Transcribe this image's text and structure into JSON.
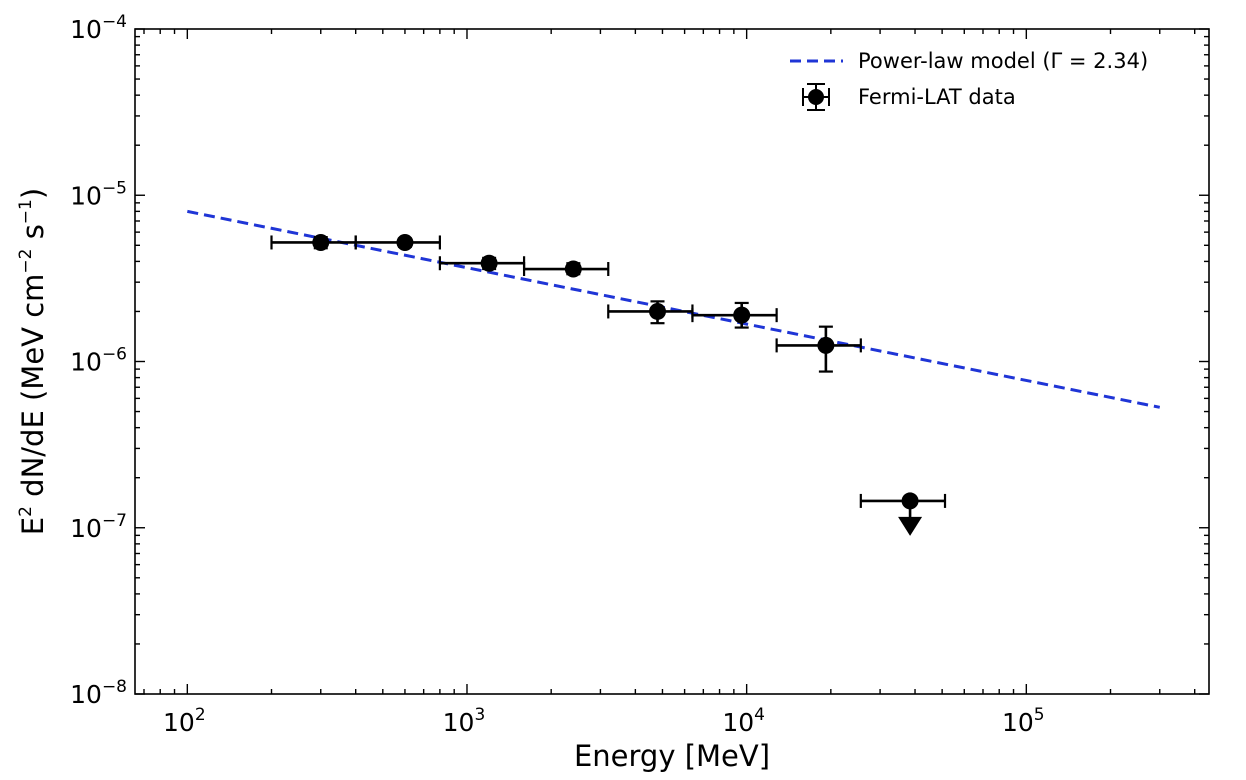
{
  "chart_data": {
    "type": "scatter",
    "xlabel": "Energy [MeV]",
    "ylabel": "E² dN/dE (MeV cm⁻² s⁻¹)",
    "ylabel_parts": {
      "pre": "E",
      "sup_E": "2",
      "mid": " dN/dE (MeV cm",
      "sup_cm": "−2",
      "mid2": " s",
      "sup_s": "−1",
      "post": ")"
    },
    "xscale": "log",
    "yscale": "log",
    "xlim": [
      65,
      450000
    ],
    "ylim": [
      1e-08,
      0.0001
    ],
    "x_ticks": [
      {
        "value": 100,
        "base": "10",
        "exp": "2"
      },
      {
        "value": 1000,
        "base": "10",
        "exp": "3"
      },
      {
        "value": 10000,
        "base": "10",
        "exp": "4"
      },
      {
        "value": 100000,
        "base": "10",
        "exp": "5"
      }
    ],
    "y_ticks": [
      {
        "value": 1e-08,
        "base": "10",
        "exp": "−8"
      },
      {
        "value": 1e-07,
        "base": "10",
        "exp": "−7"
      },
      {
        "value": 1e-06,
        "base": "10",
        "exp": "−6"
      },
      {
        "value": 1e-05,
        "base": "10",
        "exp": "−5"
      },
      {
        "value": 0.0001,
        "base": "10",
        "exp": "−4"
      }
    ],
    "grid": false,
    "legend_position": "top-right",
    "series": [
      {
        "name": "Power-law model (Γ = 2.34)",
        "kind": "line",
        "style": "dashed",
        "color": "#1f35d6",
        "x": [
          100,
          300000
        ],
        "y": [
          8e-06,
          5.3e-07
        ]
      },
      {
        "name": "Fermi-LAT data",
        "kind": "errorbar",
        "color": "#000000",
        "points": [
          {
            "x": 300,
            "xlo": 200,
            "xhi": 400,
            "y": 5.2e-06,
            "ylo": 4.8e-06,
            "yhi": 5.6e-06,
            "upper_limit": false
          },
          {
            "x": 600,
            "xlo": 400,
            "xhi": 800,
            "y": 5.2e-06,
            "ylo": 4.9e-06,
            "yhi": 5.5e-06,
            "upper_limit": false
          },
          {
            "x": 1200,
            "xlo": 800,
            "xhi": 1600,
            "y": 3.9e-06,
            "ylo": 3.6e-06,
            "yhi": 4.2e-06,
            "upper_limit": false
          },
          {
            "x": 2400,
            "xlo": 1600,
            "xhi": 3200,
            "y": 3.6e-06,
            "ylo": 3.35e-06,
            "yhi": 3.9e-06,
            "upper_limit": false
          },
          {
            "x": 4800,
            "xlo": 3200,
            "xhi": 6400,
            "y": 2e-06,
            "ylo": 1.7e-06,
            "yhi": 2.3e-06,
            "upper_limit": false
          },
          {
            "x": 9600,
            "xlo": 6400,
            "xhi": 12800,
            "y": 1.9e-06,
            "ylo": 1.6e-06,
            "yhi": 2.25e-06,
            "upper_limit": false
          },
          {
            "x": 19200,
            "xlo": 12800,
            "xhi": 25600,
            "y": 1.25e-06,
            "ylo": 8.7e-07,
            "yhi": 1.62e-06,
            "upper_limit": false
          },
          {
            "x": 38400,
            "xlo": 25600,
            "xhi": 51200,
            "y": 1.45e-07,
            "upper_limit": true
          }
        ]
      }
    ]
  }
}
